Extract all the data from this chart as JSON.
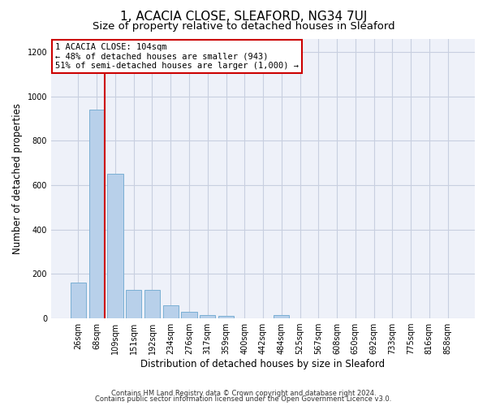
{
  "title": "1, ACACIA CLOSE, SLEAFORD, NG34 7UJ",
  "subtitle": "Size of property relative to detached houses in Sleaford",
  "xlabel": "Distribution of detached houses by size in Sleaford",
  "ylabel": "Number of detached properties",
  "footnote1": "Contains HM Land Registry data © Crown copyright and database right 2024.",
  "footnote2": "Contains public sector information licensed under the Open Government Licence v3.0.",
  "categories": [
    "26sqm",
    "68sqm",
    "109sqm",
    "151sqm",
    "192sqm",
    "234sqm",
    "276sqm",
    "317sqm",
    "359sqm",
    "400sqm",
    "442sqm",
    "484sqm",
    "525sqm",
    "567sqm",
    "608sqm",
    "650sqm",
    "692sqm",
    "733sqm",
    "775sqm",
    "816sqm",
    "858sqm"
  ],
  "values": [
    160,
    940,
    650,
    130,
    130,
    58,
    30,
    15,
    12,
    0,
    0,
    15,
    0,
    0,
    0,
    0,
    0,
    0,
    0,
    0,
    0
  ],
  "bar_color": "#b8d0ea",
  "bar_edge_color": "#7aafd4",
  "property_label": "1 ACACIA CLOSE: 104sqm",
  "annotation_line1": "← 48% of detached houses are smaller (943)",
  "annotation_line2": "51% of semi-detached houses are larger (1,000) →",
  "vline_color": "#cc0000",
  "ylim": [
    0,
    1260
  ],
  "yticks": [
    0,
    200,
    400,
    600,
    800,
    1000,
    1200
  ],
  "bg_color": "#eef1f9",
  "grid_color": "#c8cfe0",
  "title_fontsize": 11,
  "subtitle_fontsize": 9.5,
  "axis_label_fontsize": 8.5,
  "tick_fontsize": 7,
  "annotation_fontsize": 7.5,
  "footnote_fontsize": 6
}
